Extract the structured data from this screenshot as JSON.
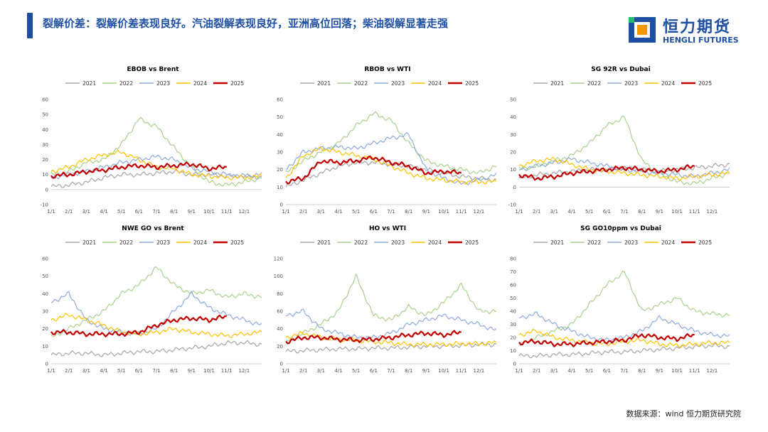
{
  "header": {
    "title": "裂解价差：裂解价差表现良好。汽油裂解表现良好，亚洲高位回落；柴油裂解显著走强",
    "logo_name": "恒力期货",
    "logo_sub": "HENGLI FUTURES"
  },
  "footer": {
    "source": "数据来源：wind 恒力期货研究院"
  },
  "colors": {
    "y2021": "#a6a6a6",
    "y2022": "#a9d18e",
    "y2023": "#8faadc",
    "y2024": "#ffc000",
    "y2025": "#c00000",
    "brand": "#1f4fa3"
  },
  "chart_data": [
    {
      "type": "line",
      "title": "EBOB vs Brent",
      "legend": [
        "2021",
        "2022",
        "2023",
        "2024",
        "2025"
      ],
      "ylim": [
        -10,
        60
      ],
      "yticks": [
        -10,
        0,
        10,
        20,
        30,
        40,
        50,
        60
      ],
      "xticks": [
        "1/1",
        "2/1",
        "3/1",
        "4/1",
        "5/1",
        "6/1",
        "7/1",
        "8/1",
        "9/1",
        "10/1",
        "11/1",
        "12/1"
      ],
      "series": [
        {
          "name": "2021",
          "values": [
            2,
            3,
            5,
            8,
            10,
            10,
            11,
            12,
            10,
            10,
            9,
            9,
            8
          ]
        },
        {
          "name": "2022",
          "values": [
            10,
            12,
            18,
            20,
            30,
            47,
            42,
            28,
            15,
            5,
            3,
            5,
            8
          ]
        },
        {
          "name": "2023",
          "values": [
            8,
            10,
            12,
            15,
            18,
            20,
            22,
            20,
            14,
            12,
            10,
            9,
            10
          ]
        },
        {
          "name": "2024",
          "values": [
            12,
            15,
            20,
            23,
            25,
            20,
            15,
            14,
            10,
            9,
            8,
            8,
            9
          ]
        },
        {
          "name": "2025",
          "values": [
            9,
            10,
            12,
            13,
            15,
            16,
            15,
            16,
            17,
            14,
            15,
            null,
            null
          ]
        }
      ]
    },
    {
      "type": "line",
      "title": "RBOB vs WTI",
      "legend": [
        "2021",
        "2022",
        "2023",
        "2024",
        "2025"
      ],
      "ylim": [
        0,
        60
      ],
      "yticks": [
        0,
        10,
        20,
        30,
        40,
        50,
        60
      ],
      "xticks": [
        "1/1",
        "2/1",
        "3/1",
        "4/1",
        "5/1",
        "6/1",
        "7/1",
        "8/1",
        "9/1",
        "10/1",
        "11/1",
        "12/1"
      ],
      "series": [
        {
          "name": "2021",
          "values": [
            10,
            14,
            18,
            22,
            24,
            24,
            23,
            22,
            20,
            18,
            16,
            15,
            14
          ]
        },
        {
          "name": "2022",
          "values": [
            18,
            25,
            30,
            35,
            45,
            52,
            48,
            35,
            25,
            22,
            20,
            18,
            22
          ]
        },
        {
          "name": "2023",
          "values": [
            20,
            30,
            32,
            33,
            32,
            35,
            38,
            40,
            20,
            15,
            12,
            14,
            17
          ]
        },
        {
          "name": "2024",
          "values": [
            15,
            28,
            32,
            30,
            28,
            26,
            22,
            18,
            15,
            14,
            13,
            13,
            13
          ]
        },
        {
          "name": "2025",
          "values": [
            13,
            15,
            25,
            24,
            25,
            27,
            24,
            22,
            18,
            19,
            18,
            null,
            null
          ]
        }
      ]
    },
    {
      "type": "line",
      "title": "SG 92R vs Dubai",
      "legend": [
        "2021",
        "2022",
        "2023",
        "2024",
        "2025"
      ],
      "ylim": [
        -10,
        50
      ],
      "yticks": [
        -10,
        0,
        10,
        20,
        30,
        40,
        50
      ],
      "xticks": [
        "1/1",
        "2/1",
        "3/1",
        "4/1",
        "5/1",
        "6/1",
        "7/1",
        "8/1",
        "9/1",
        "10/1",
        "11/1",
        "12/1"
      ],
      "series": [
        {
          "name": "2021",
          "values": [
            5,
            7,
            8,
            9,
            10,
            10,
            11,
            10,
            9,
            10,
            11,
            12,
            13
          ]
        },
        {
          "name": "2022",
          "values": [
            10,
            12,
            15,
            18,
            25,
            35,
            40,
            15,
            8,
            3,
            2,
            5,
            8
          ]
        },
        {
          "name": "2023",
          "values": [
            10,
            12,
            14,
            16,
            14,
            12,
            10,
            9,
            8,
            7,
            6,
            8,
            10
          ]
        },
        {
          "name": "2024",
          "values": [
            12,
            15,
            16,
            13,
            10,
            9,
            8,
            7,
            6,
            5,
            6,
            7,
            8
          ]
        },
        {
          "name": "2025",
          "values": [
            7,
            5,
            6,
            8,
            9,
            10,
            11,
            10,
            9,
            10,
            12,
            null,
            null
          ]
        }
      ]
    },
    {
      "type": "line",
      "title": "NWE GO vs Brent",
      "legend": [
        "2021",
        "2022",
        "2023",
        "2024",
        "2025"
      ],
      "ylim": [
        0,
        60
      ],
      "yticks": [
        0,
        10,
        20,
        30,
        40,
        50,
        60
      ],
      "xticks": [
        "1/1",
        "2/1",
        "3/1",
        "4/1",
        "5/1",
        "6/1",
        "7/1",
        "8/1",
        "9/1",
        "10/1",
        "11/1",
        "12/1"
      ],
      "series": [
        {
          "name": "2021",
          "values": [
            5,
            6,
            6,
            5,
            6,
            7,
            7,
            8,
            9,
            10,
            12,
            12,
            11
          ]
        },
        {
          "name": "2022",
          "values": [
            15,
            20,
            25,
            30,
            40,
            45,
            55,
            45,
            40,
            42,
            38,
            40,
            38
          ]
        },
        {
          "name": "2023",
          "values": [
            35,
            40,
            25,
            20,
            18,
            17,
            20,
            30,
            40,
            32,
            28,
            25,
            22
          ]
        },
        {
          "name": "2024",
          "values": [
            25,
            28,
            25,
            22,
            18,
            17,
            18,
            20,
            18,
            17,
            16,
            17,
            18
          ]
        },
        {
          "name": "2025",
          "values": [
            18,
            18,
            17,
            17,
            17,
            18,
            22,
            25,
            26,
            25,
            27,
            null,
            null
          ]
        }
      ]
    },
    {
      "type": "line",
      "title": "HO vs WTI",
      "legend": [
        "2021",
        "2022",
        "2023",
        "2024",
        "2025"
      ],
      "ylim": [
        0,
        120
      ],
      "yticks": [
        0,
        20,
        40,
        60,
        80,
        100,
        120
      ],
      "xticks": [
        "1/1",
        "2/1",
        "3/1",
        "4/1",
        "5/1",
        "6/1",
        "7/1",
        "8/1",
        "9/1",
        "10/1",
        "11/1",
        "12/1"
      ],
      "series": [
        {
          "name": "2021",
          "values": [
            14,
            15,
            16,
            17,
            17,
            18,
            18,
            19,
            20,
            20,
            21,
            22,
            22
          ]
        },
        {
          "name": "2022",
          "values": [
            25,
            35,
            45,
            60,
            100,
            55,
            50,
            65,
            55,
            70,
            90,
            60,
            60
          ]
        },
        {
          "name": "2023",
          "values": [
            55,
            60,
            40,
            35,
            30,
            30,
            35,
            45,
            50,
            55,
            50,
            45,
            38
          ]
        },
        {
          "name": "2024",
          "values": [
            30,
            35,
            30,
            28,
            27,
            25,
            24,
            22,
            22,
            22,
            23,
            23,
            24
          ]
        },
        {
          "name": "2025",
          "values": [
            25,
            30,
            30,
            28,
            27,
            28,
            30,
            33,
            35,
            33,
            36,
            null,
            null
          ]
        }
      ]
    },
    {
      "type": "line",
      "title": "SG GO10ppm vs Dubai",
      "legend": [
        "2021",
        "2022",
        "2023",
        "2024",
        "2025"
      ],
      "ylim": [
        0,
        80
      ],
      "yticks": [
        0,
        10,
        20,
        30,
        40,
        50,
        60,
        70,
        80
      ],
      "xticks": [
        "1/1",
        "2/1",
        "3/1",
        "4/1",
        "5/1",
        "6/1",
        "7/1",
        "8/1",
        "9/1",
        "10/1",
        "11/1",
        "12/1"
      ],
      "series": [
        {
          "name": "2021",
          "values": [
            6,
            6,
            7,
            7,
            8,
            9,
            9,
            10,
            11,
            12,
            13,
            14,
            13
          ]
        },
        {
          "name": "2022",
          "values": [
            15,
            20,
            25,
            30,
            45,
            60,
            70,
            40,
            45,
            50,
            40,
            38,
            37
          ]
        },
        {
          "name": "2023",
          "values": [
            35,
            38,
            30,
            25,
            20,
            18,
            20,
            25,
            35,
            30,
            25,
            22,
            21
          ]
        },
        {
          "name": "2024",
          "values": [
            22,
            25,
            20,
            18,
            16,
            15,
            17,
            18,
            15,
            14,
            15,
            16,
            16
          ]
        },
        {
          "name": "2025",
          "values": [
            16,
            17,
            15,
            15,
            16,
            17,
            18,
            22,
            20,
            19,
            22,
            null,
            null
          ]
        }
      ]
    }
  ]
}
